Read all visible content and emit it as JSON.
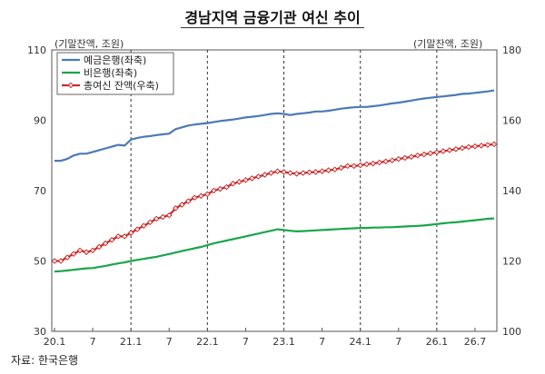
{
  "title": "경남지역 금융기관 여신 추이",
  "unit_left": "(기말잔액, 조원)",
  "unit_right": "(기말잔액, 조원)",
  "source": "자료: 한국은행",
  "chart_data": {
    "type": "line",
    "title": "경남지역 금융기관 여신 추이",
    "xlabel": "",
    "ylabel": "",
    "x_tick_labels": [
      "20.1",
      "7",
      "21.1",
      "7",
      "22.1",
      "7",
      "23.1",
      "7",
      "24.1",
      "7",
      "26.1",
      "26.7"
    ],
    "x_tick_index": [
      0,
      6,
      12,
      18,
      24,
      30,
      36,
      42,
      48,
      54,
      60,
      66
    ],
    "ylim_left": [
      30,
      110
    ],
    "yticks_left": [
      30,
      50,
      70,
      90,
      110
    ],
    "ylim_right": [
      100,
      180
    ],
    "yticks_right": [
      100,
      120,
      140,
      160,
      180
    ],
    "dashed_year_lines_at_index": [
      12,
      24,
      36,
      48,
      60
    ],
    "legend_position": "top-left",
    "series": [
      {
        "name": "예금은행(좌축)",
        "axis": "left",
        "color": "#4a7ab5",
        "values": [
          78.5,
          78.5,
          79,
          80,
          80.5,
          80.5,
          81,
          81.5,
          82,
          82.5,
          83,
          82.8,
          84.5,
          85,
          85.3,
          85.5,
          85.8,
          86,
          86.2,
          87.5,
          88,
          88.5,
          88.8,
          89,
          89.2,
          89.5,
          89.8,
          90,
          90.2,
          90.5,
          90.8,
          91,
          91.2,
          91.5,
          91.8,
          92,
          91.8,
          91.5,
          91.8,
          92,
          92.2,
          92.5,
          92.5,
          92.7,
          93,
          93.3,
          93.5,
          93.7,
          93.8,
          93.8,
          94,
          94.2,
          94.5,
          94.8,
          95,
          95.3,
          95.6,
          95.9,
          96.2,
          96.4,
          96.6,
          96.8,
          97,
          97.2,
          97.5,
          97.6,
          97.8,
          98,
          98.2,
          98.5
        ]
      },
      {
        "name": "비은행(좌축)",
        "axis": "left",
        "color": "#1aa54b",
        "values": [
          47,
          47.1,
          47.3,
          47.5,
          47.7,
          47.9,
          48,
          48.3,
          48.6,
          49,
          49.3,
          49.6,
          50,
          50.3,
          50.6,
          50.9,
          51.2,
          51.6,
          52,
          52.4,
          52.8,
          53.2,
          53.6,
          54,
          54.5,
          55,
          55.4,
          55.8,
          56.2,
          56.6,
          57,
          57.4,
          57.8,
          58.2,
          58.6,
          59,
          58.8,
          58.6,
          58.4,
          58.5,
          58.6,
          58.7,
          58.8,
          58.9,
          59,
          59.1,
          59.2,
          59.3,
          59.4,
          59.4,
          59.5,
          59.5,
          59.6,
          59.6,
          59.7,
          59.8,
          59.9,
          60,
          60.1,
          60.3,
          60.5,
          60.7,
          60.9,
          61,
          61.2,
          61.4,
          61.6,
          61.8,
          62,
          62.1
        ]
      },
      {
        "name": "총여신 잔액(우축)",
        "axis": "right",
        "color": "#cc2a2a",
        "values": [
          120,
          120,
          121,
          122,
          123,
          122.5,
          123,
          124,
          125,
          126,
          127,
          127,
          128,
          129,
          130,
          131,
          132,
          132.5,
          133,
          135,
          136,
          137,
          138,
          138.5,
          139,
          140,
          140.5,
          141,
          142,
          142.5,
          143,
          143.5,
          144,
          144.5,
          145,
          145.5,
          145.3,
          145,
          144.8,
          145,
          145.2,
          145.3,
          145.5,
          145.8,
          146,
          146.5,
          147,
          147,
          147.2,
          147.5,
          147.7,
          148,
          148.3,
          148.6,
          149,
          149.3,
          149.6,
          150,
          150.3,
          150.6,
          150.9,
          151.2,
          151.5,
          151.8,
          152.1,
          152.4,
          152.6,
          152.8,
          153,
          153.2
        ]
      }
    ]
  }
}
